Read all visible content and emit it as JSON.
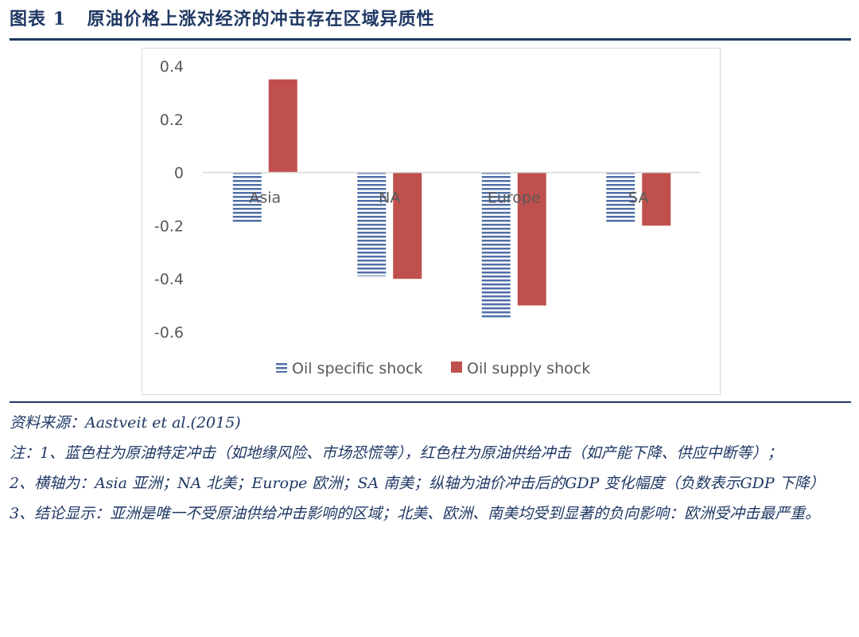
{
  "header": {
    "label": "图表",
    "number": "1",
    "title": "原油价格上涨对经济的冲击存在区域异质性"
  },
  "colors": {
    "brand": "#1f3864",
    "oil_specific": "#4f6fa8",
    "oil_supply": "#c0504d"
  },
  "chart_data": {
    "type": "bar",
    "categories": [
      "Asia",
      "NA",
      "Europe",
      "SA"
    ],
    "series": [
      {
        "name": "Oil specific shock",
        "values": [
          -0.19,
          -0.39,
          -0.55,
          -0.19
        ],
        "color": "#4f6fa8",
        "pattern": "horizontal-stripes"
      },
      {
        "name": "Oil supply shock",
        "values": [
          0.35,
          -0.4,
          -0.5,
          -0.2
        ],
        "color": "#c0504d",
        "pattern": "solid"
      }
    ],
    "yticks": [
      "0.4",
      "0.2",
      "0",
      "-0.2",
      "-0.4",
      "-0.6"
    ],
    "ylim": [
      -0.6,
      0.4
    ],
    "grid": false,
    "legend_position": "bottom"
  },
  "notes": {
    "source": "资料来源：Aastveit et al.(2015)",
    "note1": "注：1、蓝色柱为原油特定冲击（如地缘风险、市场恐慌等），红色柱为原油供给冲击（如产能下降、供应中断等）；",
    "note2": "2、横轴为：Asia 亚洲；NA 北美；Europe 欧洲；SA 南美；纵轴为油价冲击后的GDP 变化幅度（负数表示GDP 下降）",
    "note3": "3、结论显示：亚洲是唯一不受原油供给冲击影响的区域；北美、欧洲、南美均受到显著的负向影响：欧洲受冲击最严重。"
  }
}
